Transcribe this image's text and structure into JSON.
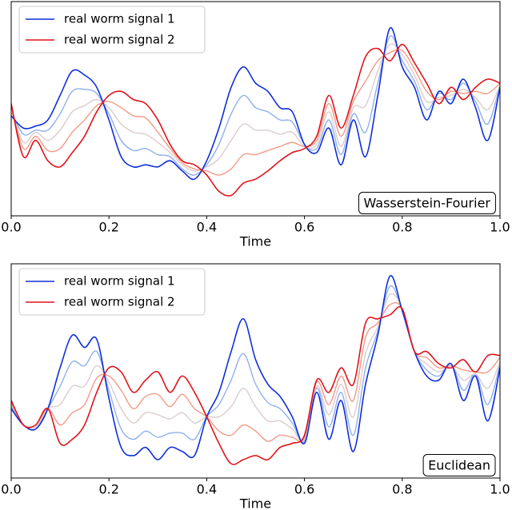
{
  "chart_data": [
    {
      "type": "line",
      "xlabel": "Time",
      "annotation": "Wasserstein-Fourier",
      "legend": "upper left",
      "x": [
        0,
        0.025,
        0.05,
        0.075,
        0.1,
        0.125,
        0.15,
        0.175,
        0.2,
        0.225,
        0.25,
        0.275,
        0.3,
        0.325,
        0.35,
        0.375,
        0.4,
        0.425,
        0.45,
        0.475,
        0.5,
        0.525,
        0.55,
        0.575,
        0.6,
        0.625,
        0.65,
        0.675,
        0.7,
        0.725,
        0.75,
        0.775,
        0.8,
        0.825,
        0.85,
        0.875,
        0.9,
        0.925,
        0.95,
        0.975,
        1
      ],
      "xlim": [
        0,
        1
      ],
      "xticks": [
        {
          "value": 0,
          "label": "0.0"
        },
        0.2,
        0.4,
        0.6,
        0.8,
        {
          "value": 1,
          "label": "1.0"
        }
      ],
      "ylim": [
        0,
        1.05
      ],
      "series": [
        {
          "color": "#8fb0ee",
          "values": [
            0.51,
            0.4,
            0.42,
            0.42,
            0.5,
            0.61,
            0.62,
            0.6,
            0.5,
            0.37,
            0.32,
            0.33,
            0.3,
            0.29,
            0.23,
            0.2,
            0.25,
            0.35,
            0.5,
            0.59,
            0.53,
            0.51,
            0.47,
            0.46,
            0.35,
            0.33,
            0.47,
            0.3,
            0.5,
            0.41,
            0.65,
            0.88,
            0.76,
            0.66,
            0.52,
            0.6,
            0.57,
            0.65,
            0.56,
            0.45,
            0.64
          ]
        },
        {
          "color": "#ddcccc",
          "values": [
            0.52,
            0.36,
            0.41,
            0.37,
            0.42,
            0.51,
            0.54,
            0.57,
            0.53,
            0.45,
            0.41,
            0.4,
            0.36,
            0.31,
            0.25,
            0.22,
            0.24,
            0.28,
            0.37,
            0.45,
            0.42,
            0.42,
            0.4,
            0.41,
            0.34,
            0.35,
            0.51,
            0.34,
            0.53,
            0.54,
            0.71,
            0.84,
            0.79,
            0.69,
            0.56,
            0.58,
            0.59,
            0.62,
            0.58,
            0.52,
            0.64
          ]
        },
        {
          "color": "#f39a86",
          "values": [
            0.54,
            0.33,
            0.39,
            0.32,
            0.33,
            0.41,
            0.47,
            0.54,
            0.56,
            0.53,
            0.49,
            0.48,
            0.41,
            0.33,
            0.26,
            0.23,
            0.22,
            0.2,
            0.23,
            0.3,
            0.3,
            0.32,
            0.34,
            0.36,
            0.34,
            0.37,
            0.55,
            0.39,
            0.56,
            0.66,
            0.76,
            0.8,
            0.81,
            0.72,
            0.61,
            0.57,
            0.61,
            0.6,
            0.61,
            0.6,
            0.65
          ]
        },
        {
          "name": "real worm signal 1",
          "color": "#1030d8",
          "values": [
            0.49,
            0.43,
            0.44,
            0.47,
            0.59,
            0.71,
            0.69,
            0.63,
            0.47,
            0.29,
            0.24,
            0.25,
            0.24,
            0.27,
            0.22,
            0.18,
            0.27,
            0.43,
            0.63,
            0.73,
            0.65,
            0.61,
            0.53,
            0.51,
            0.35,
            0.31,
            0.43,
            0.25,
            0.47,
            0.29,
            0.59,
            0.92,
            0.73,
            0.63,
            0.47,
            0.61,
            0.55,
            0.67,
            0.53,
            0.37,
            0.63
          ]
        },
        {
          "name": "real worm signal 2",
          "color": "#e0141c",
          "values": [
            0.55,
            0.29,
            0.37,
            0.27,
            0.24,
            0.31,
            0.39,
            0.51,
            0.59,
            0.61,
            0.57,
            0.55,
            0.47,
            0.35,
            0.27,
            0.25,
            0.2,
            0.12,
            0.1,
            0.16,
            0.18,
            0.22,
            0.27,
            0.31,
            0.33,
            0.39,
            0.59,
            0.43,
            0.59,
            0.78,
            0.82,
            0.76,
            0.84,
            0.75,
            0.65,
            0.55,
            0.63,
            0.57,
            0.63,
            0.67,
            0.65
          ]
        }
      ]
    },
    {
      "type": "line",
      "xlabel": "Time",
      "annotation": "Euclidean",
      "legend": "upper left",
      "x": [
        0,
        0.025,
        0.05,
        0.075,
        0.1,
        0.125,
        0.15,
        0.175,
        0.2,
        0.225,
        0.25,
        0.275,
        0.3,
        0.325,
        0.35,
        0.375,
        0.4,
        0.425,
        0.45,
        0.475,
        0.5,
        0.525,
        0.55,
        0.575,
        0.6,
        0.625,
        0.65,
        0.675,
        0.7,
        0.725,
        0.75,
        0.775,
        0.8,
        0.825,
        0.85,
        0.875,
        0.9,
        0.925,
        0.95,
        0.975,
        1
      ],
      "xlim": [
        0,
        1
      ],
      "xticks": [
        {
          "value": 0,
          "label": "0.0"
        },
        0.2,
        0.4,
        0.6,
        0.8,
        {
          "value": 1,
          "label": "1.0"
        }
      ],
      "ylim": [
        -0.02,
        1.03
      ],
      "series": [
        {
          "color": "#8fb0ee",
          "values": [
            0.33,
            0.24,
            0.23,
            0.32,
            0.43,
            0.55,
            0.53,
            0.6,
            0.41,
            0.22,
            0.17,
            0.21,
            0.18,
            0.2,
            0.2,
            0.17,
            0.28,
            0.34,
            0.46,
            0.59,
            0.44,
            0.35,
            0.32,
            0.25,
            0.16,
            0.42,
            0.23,
            0.4,
            0.19,
            0.52,
            0.7,
            0.92,
            0.8,
            0.6,
            0.51,
            0.48,
            0.54,
            0.41,
            0.49,
            0.34,
            0.54
          ]
        },
        {
          "color": "#ddcccc",
          "values": [
            0.34,
            0.24,
            0.23,
            0.32,
            0.34,
            0.43,
            0.43,
            0.53,
            0.45,
            0.32,
            0.25,
            0.3,
            0.29,
            0.27,
            0.3,
            0.25,
            0.28,
            0.28,
            0.33,
            0.42,
            0.33,
            0.26,
            0.26,
            0.22,
            0.17,
            0.43,
            0.29,
            0.44,
            0.28,
            0.59,
            0.72,
            0.88,
            0.81,
            0.6,
            0.54,
            0.5,
            0.53,
            0.46,
            0.49,
            0.42,
            0.55
          ]
        },
        {
          "color": "#f39a86",
          "values": [
            0.35,
            0.24,
            0.24,
            0.32,
            0.24,
            0.3,
            0.34,
            0.47,
            0.48,
            0.41,
            0.32,
            0.38,
            0.39,
            0.33,
            0.39,
            0.32,
            0.28,
            0.21,
            0.19,
            0.24,
            0.21,
            0.16,
            0.19,
            0.18,
            0.18,
            0.45,
            0.34,
            0.48,
            0.36,
            0.67,
            0.74,
            0.83,
            0.81,
            0.6,
            0.57,
            0.52,
            0.53,
            0.51,
            0.5,
            0.5,
            0.57
          ]
        },
        {
          "name": "real worm signal 1",
          "color": "#1030d8",
          "values": [
            0.32,
            0.24,
            0.22,
            0.32,
            0.52,
            0.68,
            0.62,
            0.66,
            0.37,
            0.13,
            0.09,
            0.13,
            0.07,
            0.13,
            0.11,
            0.09,
            0.28,
            0.4,
            0.6,
            0.76,
            0.56,
            0.44,
            0.38,
            0.28,
            0.15,
            0.4,
            0.17,
            0.36,
            0.11,
            0.44,
            0.68,
            0.97,
            0.8,
            0.6,
            0.48,
            0.46,
            0.54,
            0.36,
            0.48,
            0.26,
            0.52
          ]
        },
        {
          "name": "real worm signal 2",
          "color": "#e0141c",
          "values": [
            0.36,
            0.24,
            0.24,
            0.32,
            0.15,
            0.17,
            0.24,
            0.4,
            0.52,
            0.5,
            0.4,
            0.46,
            0.5,
            0.4,
            0.48,
            0.4,
            0.28,
            0.15,
            0.05,
            0.07,
            0.09,
            0.07,
            0.13,
            0.15,
            0.19,
            0.46,
            0.4,
            0.52,
            0.44,
            0.74,
            0.76,
            0.78,
            0.81,
            0.6,
            0.6,
            0.54,
            0.52,
            0.56,
            0.5,
            0.58,
            0.58
          ]
        }
      ]
    }
  ]
}
